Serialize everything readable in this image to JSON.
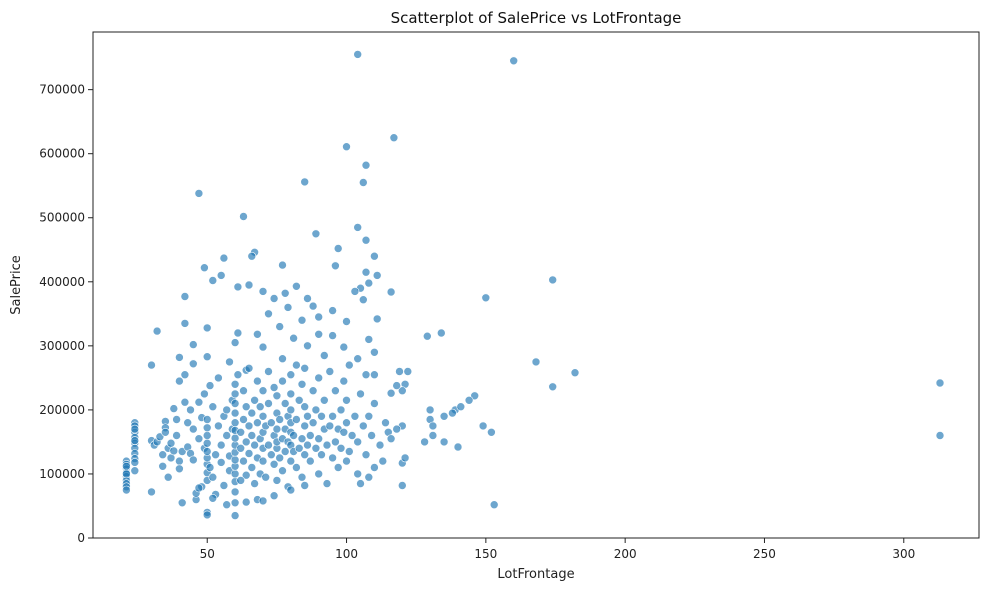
{
  "chart_data": {
    "type": "scatter",
    "title": "Scatterplot of SalePrice vs LotFrontage",
    "xlabel": "LotFrontage",
    "ylabel": "SalePrice",
    "xlim": [
      9,
      327
    ],
    "ylim": [
      0,
      790000
    ],
    "xticks": [
      50,
      100,
      150,
      200,
      250,
      300
    ],
    "yticks": [
      0,
      100000,
      200000,
      300000,
      400000,
      500000,
      600000,
      700000
    ],
    "grid": false,
    "legend": "none",
    "marker_color": "#1f77b4",
    "marker_edge_color": "#ffffff",
    "marker_alpha": 0.65,
    "points": [
      [
        104,
        755000
      ],
      [
        160,
        745000
      ],
      [
        117,
        625000
      ],
      [
        100,
        611000
      ],
      [
        107,
        582000
      ],
      [
        106,
        555000
      ],
      [
        85,
        556000
      ],
      [
        47,
        538000
      ],
      [
        63,
        502000
      ],
      [
        104,
        485000
      ],
      [
        89,
        475000
      ],
      [
        107,
        465000
      ],
      [
        97,
        452000
      ],
      [
        67,
        446000
      ],
      [
        66,
        440000
      ],
      [
        56,
        437000
      ],
      [
        110,
        440000
      ],
      [
        77,
        426000
      ],
      [
        96,
        425000
      ],
      [
        49,
        422000
      ],
      [
        107,
        415000
      ],
      [
        111,
        410000
      ],
      [
        55,
        410000
      ],
      [
        52,
        402000
      ],
      [
        108,
        398000
      ],
      [
        105,
        390000
      ],
      [
        174,
        403000
      ],
      [
        61,
        392000
      ],
      [
        82,
        393000
      ],
      [
        65,
        395000
      ],
      [
        70,
        385000
      ],
      [
        78,
        382000
      ],
      [
        103,
        385000
      ],
      [
        116,
        384000
      ],
      [
        42,
        377000
      ],
      [
        150,
        375000
      ],
      [
        74,
        374000
      ],
      [
        106,
        372000
      ],
      [
        86,
        374000
      ],
      [
        88,
        362000
      ],
      [
        79,
        360000
      ],
      [
        95,
        355000
      ],
      [
        72,
        350000
      ],
      [
        90,
        345000
      ],
      [
        111,
        342000
      ],
      [
        84,
        340000
      ],
      [
        100,
        338000
      ],
      [
        42,
        335000
      ],
      [
        76,
        330000
      ],
      [
        61,
        320000
      ],
      [
        50,
        328000
      ],
      [
        32,
        323000
      ],
      [
        68,
        318000
      ],
      [
        90,
        318000
      ],
      [
        134,
        320000
      ],
      [
        129,
        315000
      ],
      [
        95,
        316000
      ],
      [
        108,
        310000
      ],
      [
        81,
        312000
      ],
      [
        60,
        305000
      ],
      [
        70,
        298000
      ],
      [
        99,
        298000
      ],
      [
        86,
        300000
      ],
      [
        45,
        302000
      ],
      [
        168,
        275000
      ],
      [
        30,
        270000
      ],
      [
        40,
        282000
      ],
      [
        50,
        283000
      ],
      [
        58,
        275000
      ],
      [
        77,
        280000
      ],
      [
        104,
        280000
      ],
      [
        92,
        285000
      ],
      [
        122,
        260000
      ],
      [
        119,
        260000
      ],
      [
        182,
        258000
      ],
      [
        110,
        255000
      ],
      [
        64,
        262000
      ],
      [
        174,
        236000
      ],
      [
        313,
        242000
      ],
      [
        146,
        222000
      ],
      [
        144,
        215000
      ],
      [
        139,
        200000
      ],
      [
        141,
        205000
      ],
      [
        138,
        195000
      ],
      [
        135,
        190000
      ],
      [
        130,
        200000
      ],
      [
        121,
        240000
      ],
      [
        120,
        230000
      ],
      [
        118,
        238000
      ],
      [
        116,
        226000
      ],
      [
        130,
        185000
      ],
      [
        131,
        175000
      ],
      [
        128,
        150000
      ],
      [
        131,
        160000
      ],
      [
        135,
        150000
      ],
      [
        140,
        142000
      ],
      [
        149,
        175000
      ],
      [
        152,
        165000
      ],
      [
        153,
        52000
      ],
      [
        313,
        160000
      ],
      [
        120,
        175000
      ],
      [
        118,
        170000
      ],
      [
        120,
        117000
      ],
      [
        121,
        125000
      ],
      [
        120,
        82000
      ],
      [
        21,
        120000
      ],
      [
        21,
        115000
      ],
      [
        21,
        108000
      ],
      [
        21,
        102000
      ],
      [
        21,
        96000
      ],
      [
        21,
        90000
      ],
      [
        21,
        85000
      ],
      [
        21,
        80000
      ],
      [
        21,
        75000
      ],
      [
        21,
        112000
      ],
      [
        21,
        100000
      ],
      [
        24,
        180000
      ],
      [
        24,
        175000
      ],
      [
        24,
        165000
      ],
      [
        24,
        157000
      ],
      [
        24,
        148000
      ],
      [
        24,
        140000
      ],
      [
        24,
        132000
      ],
      [
        24,
        124000
      ],
      [
        24,
        118000
      ],
      [
        24,
        105000
      ],
      [
        24,
        170000
      ],
      [
        24,
        152000
      ],
      [
        30,
        72000
      ],
      [
        30,
        152000
      ],
      [
        31,
        145000
      ],
      [
        32,
        150000
      ],
      [
        33,
        158000
      ],
      [
        34,
        130000
      ],
      [
        34,
        112000
      ],
      [
        35,
        182000
      ],
      [
        35,
        172000
      ],
      [
        35,
        165000
      ],
      [
        36,
        140000
      ],
      [
        36,
        95000
      ],
      [
        37,
        148000
      ],
      [
        37,
        125000
      ],
      [
        38,
        136000
      ],
      [
        38,
        202000
      ],
      [
        39,
        185000
      ],
      [
        39,
        160000
      ],
      [
        40,
        245000
      ],
      [
        40,
        120000
      ],
      [
        40,
        108000
      ],
      [
        41,
        135000
      ],
      [
        41,
        55000
      ],
      [
        42,
        255000
      ],
      [
        42,
        212000
      ],
      [
        43,
        180000
      ],
      [
        43,
        142000
      ],
      [
        44,
        132000
      ],
      [
        44,
        200000
      ],
      [
        45,
        272000
      ],
      [
        45,
        170000
      ],
      [
        45,
        122000
      ],
      [
        46,
        60000
      ],
      [
        46,
        70000
      ],
      [
        47,
        212000
      ],
      [
        47,
        155000
      ],
      [
        48,
        80000
      ],
      [
        48,
        188000
      ],
      [
        49,
        140000
      ],
      [
        49,
        225000
      ],
      [
        50,
        40000
      ],
      [
        50,
        36000
      ],
      [
        50,
        90000
      ],
      [
        50,
        102000
      ],
      [
        50,
        115000
      ],
      [
        50,
        125000
      ],
      [
        50,
        135000
      ],
      [
        50,
        148000
      ],
      [
        50,
        160000
      ],
      [
        50,
        172000
      ],
      [
        50,
        185000
      ],
      [
        51,
        238000
      ],
      [
        51,
        110000
      ],
      [
        52,
        95000
      ],
      [
        52,
        205000
      ],
      [
        53,
        68000
      ],
      [
        53,
        130000
      ],
      [
        54,
        250000
      ],
      [
        54,
        175000
      ],
      [
        55,
        145000
      ],
      [
        55,
        118000
      ],
      [
        56,
        190000
      ],
      [
        56,
        82000
      ],
      [
        57,
        160000
      ],
      [
        57,
        200000
      ],
      [
        58,
        105000
      ],
      [
        58,
        128000
      ],
      [
        59,
        215000
      ],
      [
        59,
        170000
      ],
      [
        60,
        35000
      ],
      [
        60,
        55000
      ],
      [
        60,
        72000
      ],
      [
        60,
        88000
      ],
      [
        60,
        100000
      ],
      [
        60,
        112000
      ],
      [
        60,
        122000
      ],
      [
        60,
        134000
      ],
      [
        60,
        145000
      ],
      [
        60,
        156000
      ],
      [
        60,
        168000
      ],
      [
        60,
        180000
      ],
      [
        60,
        195000
      ],
      [
        60,
        210000
      ],
      [
        60,
        225000
      ],
      [
        60,
        240000
      ],
      [
        61,
        255000
      ],
      [
        62,
        140000
      ],
      [
        62,
        165000
      ],
      [
        63,
        120000
      ],
      [
        63,
        185000
      ],
      [
        63,
        230000
      ],
      [
        64,
        98000
      ],
      [
        64,
        150000
      ],
      [
        64,
        205000
      ],
      [
        65,
        132000
      ],
      [
        65,
        175000
      ],
      [
        65,
        265000
      ],
      [
        66,
        110000
      ],
      [
        66,
        160000
      ],
      [
        66,
        195000
      ],
      [
        67,
        85000
      ],
      [
        67,
        145000
      ],
      [
        67,
        215000
      ],
      [
        68,
        60000
      ],
      [
        68,
        125000
      ],
      [
        68,
        180000
      ],
      [
        68,
        245000
      ],
      [
        69,
        100000
      ],
      [
        69,
        155000
      ],
      [
        69,
        205000
      ],
      [
        70,
        140000
      ],
      [
        70,
        165000
      ],
      [
        70,
        190000
      ],
      [
        70,
        230000
      ],
      [
        70,
        120000
      ],
      [
        71,
        175000
      ],
      [
        71,
        95000
      ],
      [
        72,
        145000
      ],
      [
        72,
        210000
      ],
      [
        72,
        260000
      ],
      [
        73,
        130000
      ],
      [
        73,
        180000
      ],
      [
        74,
        115000
      ],
      [
        74,
        160000
      ],
      [
        74,
        235000
      ],
      [
        75,
        90000
      ],
      [
        75,
        140000
      ],
      [
        75,
        170000
      ],
      [
        75,
        195000
      ],
      [
        75,
        222000
      ],
      [
        75,
        150000
      ],
      [
        76,
        125000
      ],
      [
        76,
        185000
      ],
      [
        77,
        105000
      ],
      [
        77,
        155000
      ],
      [
        77,
        245000
      ],
      [
        78,
        135000
      ],
      [
        78,
        170000
      ],
      [
        78,
        210000
      ],
      [
        79,
        80000
      ],
      [
        79,
        150000
      ],
      [
        79,
        190000
      ],
      [
        80,
        120000
      ],
      [
        80,
        145000
      ],
      [
        80,
        165000
      ],
      [
        80,
        180000
      ],
      [
        80,
        200000
      ],
      [
        80,
        225000
      ],
      [
        80,
        255000
      ],
      [
        81,
        135000
      ],
      [
        81,
        160000
      ],
      [
        82,
        110000
      ],
      [
        82,
        185000
      ],
      [
        82,
        270000
      ],
      [
        83,
        140000
      ],
      [
        83,
        215000
      ],
      [
        84,
        95000
      ],
      [
        84,
        155000
      ],
      [
        84,
        240000
      ],
      [
        85,
        82000
      ],
      [
        85,
        130000
      ],
      [
        85,
        175000
      ],
      [
        85,
        205000
      ],
      [
        85,
        265000
      ],
      [
        86,
        145000
      ],
      [
        86,
        190000
      ],
      [
        87,
        120000
      ],
      [
        87,
        160000
      ],
      [
        88,
        230000
      ],
      [
        88,
        180000
      ],
      [
        89,
        140000
      ],
      [
        89,
        200000
      ],
      [
        90,
        100000
      ],
      [
        90,
        155000
      ],
      [
        90,
        250000
      ],
      [
        91,
        130000
      ],
      [
        91,
        190000
      ],
      [
        92,
        170000
      ],
      [
        92,
        215000
      ],
      [
        93,
        85000
      ],
      [
        93,
        145000
      ],
      [
        94,
        175000
      ],
      [
        94,
        260000
      ],
      [
        95,
        125000
      ],
      [
        95,
        190000
      ],
      [
        96,
        150000
      ],
      [
        96,
        230000
      ],
      [
        97,
        110000
      ],
      [
        97,
        170000
      ],
      [
        98,
        200000
      ],
      [
        98,
        140000
      ],
      [
        99,
        165000
      ],
      [
        99,
        245000
      ],
      [
        100,
        120000
      ],
      [
        100,
        180000
      ],
      [
        100,
        215000
      ],
      [
        101,
        135000
      ],
      [
        101,
        270000
      ],
      [
        102,
        160000
      ],
      [
        103,
        190000
      ],
      [
        104,
        100000
      ],
      [
        104,
        150000
      ],
      [
        105,
        85000
      ],
      [
        105,
        225000
      ],
      [
        106,
        175000
      ],
      [
        107,
        130000
      ],
      [
        107,
        255000
      ],
      [
        108,
        95000
      ],
      [
        108,
        190000
      ],
      [
        109,
        160000
      ],
      [
        110,
        110000
      ],
      [
        110,
        210000
      ],
      [
        110,
        290000
      ],
      [
        112,
        145000
      ],
      [
        113,
        120000
      ],
      [
        114,
        180000
      ],
      [
        115,
        165000
      ],
      [
        116,
        155000
      ],
      [
        70,
        58000
      ],
      [
        64,
        56000
      ],
      [
        57,
        52000
      ],
      [
        47,
        78000
      ],
      [
        52,
        62000
      ],
      [
        74,
        66000
      ],
      [
        80,
        75000
      ],
      [
        62,
        90000
      ]
    ]
  }
}
